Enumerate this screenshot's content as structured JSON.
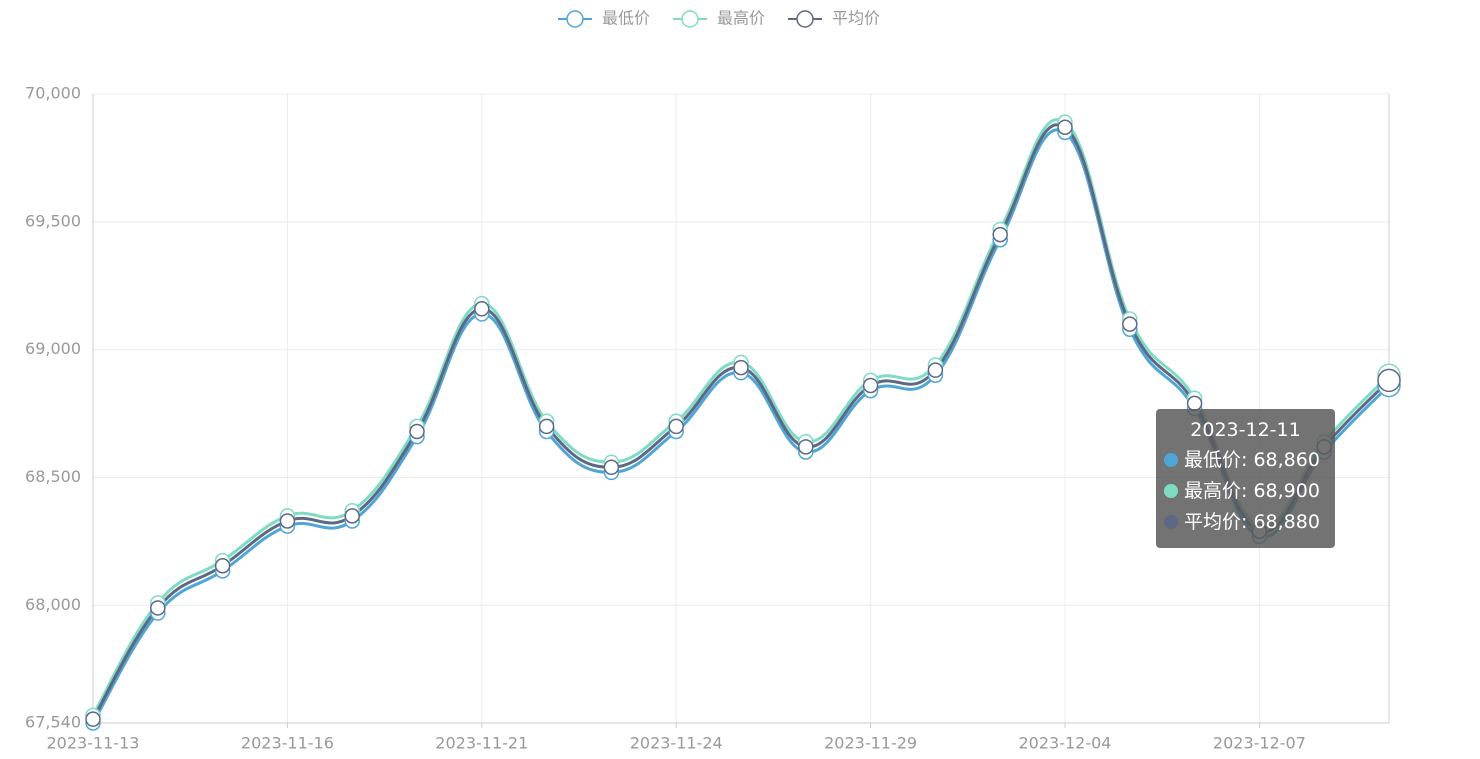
{
  "chart_data": {
    "type": "line",
    "categories": [
      "2023-11-13",
      null,
      null,
      "2023-11-16",
      null,
      null,
      "2023-11-21",
      null,
      null,
      "2023-11-24",
      null,
      null,
      "2023-11-29",
      null,
      null,
      "2023-12-04",
      null,
      null,
      "2023-12-07",
      null,
      null
    ],
    "series": [
      {
        "name": "最低价",
        "color": "#4fa6d6",
        "values": [
          67540,
          67970,
          68135,
          68310,
          68330,
          68660,
          69140,
          68680,
          68520,
          68680,
          68910,
          68600,
          68840,
          68900,
          69430,
          69850,
          69080,
          68770,
          68270,
          68600,
          68860
        ]
      },
      {
        "name": "最高价",
        "color": "#7edcc3",
        "values": [
          67570,
          68010,
          68175,
          68350,
          68370,
          68700,
          69180,
          68720,
          68560,
          68720,
          68950,
          68640,
          68880,
          68940,
          69470,
          69890,
          69120,
          68810,
          68310,
          68640,
          68900
        ]
      },
      {
        "name": "平均价",
        "color": "#5d6884",
        "values": [
          67555,
          67990,
          68155,
          68330,
          68350,
          68680,
          69160,
          68700,
          68540,
          68700,
          68930,
          68620,
          68860,
          68920,
          69450,
          69870,
          69100,
          68790,
          68290,
          68620,
          68880
        ]
      }
    ],
    "ylim": [
      67540,
      70000
    ],
    "yticks": [
      {
        "value": 67540,
        "label": "67,540"
      },
      {
        "value": 68000,
        "label": "68,000"
      },
      {
        "value": 68500,
        "label": "68,500"
      },
      {
        "value": 69000,
        "label": "69,000"
      },
      {
        "value": 69500,
        "label": "69,500"
      },
      {
        "value": 70000,
        "label": "70,000"
      }
    ],
    "grid": true,
    "smooth": true,
    "legend": "top",
    "tooltip": {
      "title": "2023-12-11",
      "rows": [
        "最低价: 68,860",
        "最高价: 68,900",
        "平均价: 68,880"
      ]
    }
  }
}
